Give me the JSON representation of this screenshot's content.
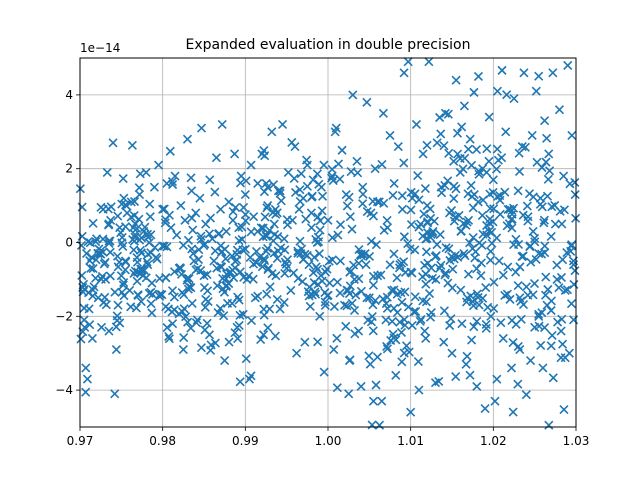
{
  "chart_data": {
    "type": "scatter",
    "title": "Expanded evaluation in double precision",
    "xlabel": "",
    "ylabel": "",
    "y_offset_label": "1e−14",
    "y_scale": 1e-14,
    "xlim": [
      0.97,
      1.03
    ],
    "ylim": [
      -5,
      5
    ],
    "xticks": [
      0.97,
      0.98,
      0.99,
      1.0,
      1.01,
      1.02,
      1.03
    ],
    "xtick_labels": [
      "0.97",
      "0.98",
      "0.99",
      "1.00",
      "1.01",
      "1.02",
      "1.03"
    ],
    "yticks": [
      -4,
      -2,
      0,
      2,
      4
    ],
    "ytick_labels": [
      "−4",
      "−2",
      "0",
      "2",
      "4"
    ],
    "grid": true,
    "marker": "x",
    "marker_color": "#1f77b4",
    "series_generation": {
      "count": 1000,
      "x_range": [
        0.97,
        1.03
      ],
      "note": "noise samples of (x-1)^7 expanded polynomial; approximate cloud"
    },
    "points": [
      [
        0.9705,
        -2.1
      ],
      [
        0.9707,
        -3.4
      ],
      [
        0.9709,
        -3.7
      ],
      [
        0.9711,
        -1.8
      ],
      [
        0.9713,
        -0.7
      ],
      [
        0.9715,
        -2.6
      ],
      [
        0.9717,
        -1.2
      ],
      [
        0.972,
        0.1
      ],
      [
        0.9722,
        -1.5
      ],
      [
        0.9724,
        -0.3
      ],
      [
        0.9726,
        -2.3
      ],
      [
        0.9728,
        0.9
      ],
      [
        0.9731,
        -1.0
      ],
      [
        0.9733,
        1.9
      ],
      [
        0.9735,
        -2.4
      ],
      [
        0.9737,
        0.6
      ],
      [
        0.974,
        2.7
      ],
      [
        0.9742,
        -4.1
      ],
      [
        0.9744,
        -2.9
      ],
      [
        0.9746,
        -1.7
      ],
      [
        0.9748,
        0.4
      ],
      [
        0.975,
        -0.9
      ],
      [
        0.9753,
        1.2
      ],
      [
        0.9755,
        -0.5
      ],
      [
        0.9757,
        0.8
      ],
      [
        0.976,
        -1.3
      ],
      [
        0.9762,
        1.1
      ],
      [
        0.9765,
        -0.2
      ],
      [
        0.9767,
        0.5
      ],
      [
        0.977,
        -0.8
      ],
      [
        0.9772,
        1.3
      ],
      [
        0.9774,
        -1.6
      ],
      [
        0.9777,
        0.3
      ],
      [
        0.978,
        1.9
      ],
      [
        0.9782,
        -0.6
      ],
      [
        0.9785,
        0.7
      ],
      [
        0.9787,
        -1.1
      ],
      [
        0.979,
        1.5
      ],
      [
        0.9792,
        -0.4
      ],
      [
        0.9795,
        2.1
      ],
      [
        0.9797,
        -1.4
      ],
      [
        0.98,
        0.9
      ],
      [
        0.9802,
        -0.1
      ],
      [
        0.9805,
        1.6
      ],
      [
        0.9807,
        -1.8
      ],
      [
        0.981,
        0.4
      ],
      [
        0.9812,
        -2.2
      ],
      [
        0.9815,
        1.8
      ],
      [
        0.9817,
        0.2
      ],
      [
        0.982,
        -0.7
      ],
      [
        0.9822,
        1.0
      ],
      [
        0.9825,
        -2.9
      ],
      [
        0.9827,
        0.6
      ],
      [
        0.983,
        2.8
      ],
      [
        0.9832,
        -1.2
      ],
      [
        0.9835,
        1.4
      ],
      [
        0.9837,
        -0.3
      ],
      [
        0.984,
        0.8
      ],
      [
        0.9842,
        -2.1
      ],
      [
        0.9845,
        1.2
      ],
      [
        0.9847,
        3.1
      ],
      [
        0.985,
        -0.9
      ],
      [
        0.9852,
        0.5
      ],
      [
        0.9855,
        -1.6
      ],
      [
        0.9857,
        1.7
      ],
      [
        0.986,
        0.1
      ],
      [
        0.9862,
        -0.5
      ],
      [
        0.9865,
        2.3
      ],
      [
        0.9867,
        -1.9
      ],
      [
        0.987,
        0.9
      ],
      [
        0.9872,
        3.2
      ],
      [
        0.9875,
        -3.2
      ],
      [
        0.9877,
        0.3
      ],
      [
        0.988,
        1.1
      ],
      [
        0.9882,
        -0.8
      ],
      [
        0.9885,
        0.6
      ],
      [
        0.9887,
        2.4
      ],
      [
        0.989,
        -2.3
      ],
      [
        0.9892,
        0.4
      ],
      [
        0.9895,
        1.8
      ],
      [
        0.9897,
        -0.2
      ],
      [
        0.99,
        1.3
      ],
      [
        0.9902,
        -1.0
      ],
      [
        0.9905,
        -3.7
      ],
      [
        0.9907,
        2.1
      ],
      [
        0.991,
        0.7
      ],
      [
        0.9912,
        -1.5
      ],
      [
        0.9915,
        1.6
      ],
      [
        0.9917,
        -0.4
      ],
      [
        0.992,
        2.4
      ],
      [
        0.9922,
        -2.5
      ],
      [
        0.9925,
        0.2
      ],
      [
        0.9927,
        1.0
      ],
      [
        0.993,
        -1.2
      ],
      [
        0.9932,
        3.0
      ],
      [
        0.9935,
        0.5
      ],
      [
        0.9937,
        -0.9
      ],
      [
        0.994,
        1.4
      ],
      [
        0.9942,
        -1.8
      ],
      [
        0.9945,
        3.2
      ],
      [
        0.9947,
        0.1
      ],
      [
        0.995,
        -0.7
      ],
      [
        0.9952,
        1.9
      ],
      [
        0.9955,
        -1.3
      ],
      [
        0.9957,
        0.6
      ],
      [
        0.996,
        2.6
      ],
      [
        0.9962,
        -3.0
      ],
      [
        0.9965,
        0.9
      ],
      [
        0.9967,
        -0.3
      ],
      [
        0.997,
        1.2
      ],
      [
        0.9972,
        -2.7
      ],
      [
        0.9975,
        2.1
      ],
      [
        0.9977,
        -0.6
      ],
      [
        0.998,
        0.4
      ],
      [
        0.9982,
        1.7
      ],
      [
        0.9985,
        -1.4
      ],
      [
        0.9987,
        0.0
      ],
      [
        0.999,
        -2.0
      ],
      [
        0.9992,
        1.5
      ],
      [
        0.9995,
        2.1
      ],
      [
        0.9997,
        -0.8
      ],
      [
        1.0,
        0.6
      ],
      [
        1.0002,
        -1.1
      ],
      [
        1.0005,
        1.8
      ],
      [
        1.0007,
        -2.9
      ],
      [
        1.001,
        3.1
      ],
      [
        1.0012,
        0.2
      ],
      [
        1.0015,
        -0.5
      ],
      [
        1.0017,
        2.5
      ],
      [
        1.002,
        -1.7
      ],
      [
        1.0022,
        1.3
      ],
      [
        1.0025,
        -4.1
      ],
      [
        1.0027,
        0.7
      ],
      [
        1.003,
        4.0
      ],
      [
        1.0032,
        -1.0
      ],
      [
        1.0035,
        2.2
      ],
      [
        1.0037,
        -2.4
      ],
      [
        1.004,
        -3.9
      ],
      [
        1.0042,
        1.5
      ],
      [
        1.0045,
        -0.3
      ],
      [
        1.0047,
        3.8
      ],
      [
        1.005,
        -1.5
      ],
      [
        1.0052,
        0.8
      ],
      [
        1.0055,
        -4.3
      ],
      [
        1.0057,
        2.0
      ],
      [
        1.006,
        -0.9
      ],
      [
        1.0062,
        1.1
      ],
      [
        1.0065,
        -4.3
      ],
      [
        1.0067,
        3.5
      ],
      [
        1.007,
        -2.1
      ],
      [
        1.0072,
        0.4
      ],
      [
        1.0075,
        2.9
      ],
      [
        1.0077,
        -1.3
      ],
      [
        1.008,
        1.6
      ],
      [
        1.0082,
        -3.6
      ],
      [
        1.0085,
        2.6
      ],
      [
        1.0087,
        -0.6
      ],
      [
        1.009,
        0.9
      ],
      [
        1.0092,
        4.6
      ],
      [
        1.0095,
        -2.8
      ],
      [
        1.0097,
        4.9
      ],
      [
        1.01,
        -4.6
      ],
      [
        1.0102,
        1.2
      ],
      [
        1.0105,
        -0.2
      ],
      [
        1.0107,
        3.2
      ],
      [
        1.011,
        -4.0
      ],
      [
        1.0112,
        0.5
      ],
      [
        1.0115,
        2.4
      ],
      [
        1.0117,
        -2.4
      ],
      [
        1.012,
        1.0
      ],
      [
        1.0122,
        4.9
      ],
      [
        1.0125,
        -1.9
      ],
      [
        1.0127,
        0.3
      ],
      [
        1.013,
        -3.8
      ],
      [
        1.0132,
        2.7
      ],
      [
        1.0135,
        -0.7
      ],
      [
        1.0137,
        1.5
      ],
      [
        1.014,
        -2.7
      ],
      [
        1.0142,
        3.5
      ],
      [
        1.0145,
        -1.1
      ],
      [
        1.0147,
        0.8
      ],
      [
        1.015,
        -3.0
      ],
      [
        1.0152,
        2.2
      ],
      [
        1.0155,
        4.4
      ],
      [
        1.0157,
        -0.4
      ],
      [
        1.016,
        1.9
      ],
      [
        1.0162,
        -2.2
      ],
      [
        1.0165,
        3.7
      ],
      [
        1.0167,
        -3.3
      ],
      [
        1.017,
        0.6
      ],
      [
        1.0172,
        2.8
      ],
      [
        1.0175,
        -1.6
      ],
      [
        1.0177,
        1.3
      ],
      [
        1.018,
        -3.9
      ],
      [
        1.0182,
        4.5
      ],
      [
        1.0185,
        -0.9
      ],
      [
        1.0187,
        2.0
      ],
      [
        1.019,
        -4.5
      ],
      [
        1.0192,
        0.2
      ],
      [
        1.0195,
        3.4
      ],
      [
        1.0197,
        -2.0
      ],
      [
        1.02,
        1.7
      ],
      [
        1.0202,
        -4.3
      ],
      [
        1.0205,
        4.1
      ],
      [
        1.0207,
        -0.5
      ],
      [
        1.021,
        2.3
      ],
      [
        1.0212,
        -2.6
      ],
      [
        1.0215,
        3.0
      ],
      [
        1.0217,
        -1.4
      ],
      [
        1.022,
        0.9
      ],
      [
        1.0222,
        -3.4
      ],
      [
        1.0225,
        3.9
      ],
      [
        1.0227,
        -0.8
      ],
      [
        1.023,
        1.4
      ],
      [
        1.0232,
        -2.9
      ],
      [
        1.0235,
        2.6
      ],
      [
        1.0237,
        4.6
      ],
      [
        1.024,
        -1.2
      ],
      [
        1.0242,
        0.7
      ],
      [
        1.0245,
        -3.2
      ],
      [
        1.0247,
        2.9
      ],
      [
        1.025,
        -2.3
      ],
      [
        1.0252,
        4.1
      ],
      [
        1.0255,
        -0.3
      ],
      [
        1.0257,
        1.2
      ],
      [
        1.026,
        -3.4
      ],
      [
        1.0262,
        3.3
      ],
      [
        1.0265,
        -1.7
      ],
      [
        1.0267,
        2.4
      ],
      [
        1.027,
        -2.8
      ],
      [
        1.0272,
        4.6
      ],
      [
        1.0275,
        0.5
      ],
      [
        1.0277,
        -1.0
      ],
      [
        1.028,
        3.6
      ],
      [
        1.0282,
        -2.4
      ],
      [
        1.0285,
        1.8
      ],
      [
        1.0287,
        -1.3
      ],
      [
        1.029,
        4.8
      ],
      [
        1.0292,
        -3.0
      ],
      [
        1.0295,
        2.9
      ],
      [
        1.0297,
        -0.6
      ],
      [
        1.0299,
        1.3
      ]
    ],
    "density_points": {
      "note": "dense background cloud following a band roughly from about -1.0 at x=0.97 toward 0.0 at x=1.03 with spread ~1.5"
    }
  }
}
